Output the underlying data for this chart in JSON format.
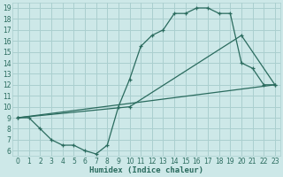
{
  "bg_color": "#cde8e8",
  "grid_color": "#aacfcf",
  "line_color": "#2a6b5e",
  "xlabel": "Humidex (Indice chaleur)",
  "xlim": [
    -0.5,
    23.5
  ],
  "ylim": [
    5.5,
    19.5
  ],
  "xticks": [
    0,
    1,
    2,
    3,
    4,
    5,
    6,
    7,
    8,
    9,
    10,
    11,
    12,
    13,
    14,
    15,
    16,
    17,
    18,
    19,
    20,
    21,
    22,
    23
  ],
  "yticks": [
    6,
    7,
    8,
    9,
    10,
    11,
    12,
    13,
    14,
    15,
    16,
    17,
    18,
    19
  ],
  "curve1_x": [
    0,
    1,
    2,
    3,
    4,
    5,
    6,
    7,
    8,
    9,
    10,
    11,
    12,
    13,
    14,
    15,
    16,
    17,
    18,
    19,
    20,
    21,
    22,
    23
  ],
  "curve1_y": [
    9.0,
    9.0,
    8.0,
    7.0,
    6.5,
    6.5,
    6.0,
    5.7,
    6.5,
    10.0,
    12.5,
    15.5,
    16.5,
    17.0,
    18.5,
    18.5,
    19.0,
    19.0,
    18.5,
    18.5,
    14.0,
    13.5,
    12.0,
    12.0
  ],
  "curve2_x": [
    0,
    10,
    20,
    23
  ],
  "curve2_y": [
    9.0,
    10.0,
    16.5,
    12.0
  ],
  "curve3_x": [
    0,
    23
  ],
  "curve3_y": [
    9.0,
    12.0
  ],
  "tick_fontsize": 5.5,
  "xlabel_fontsize": 6.5
}
